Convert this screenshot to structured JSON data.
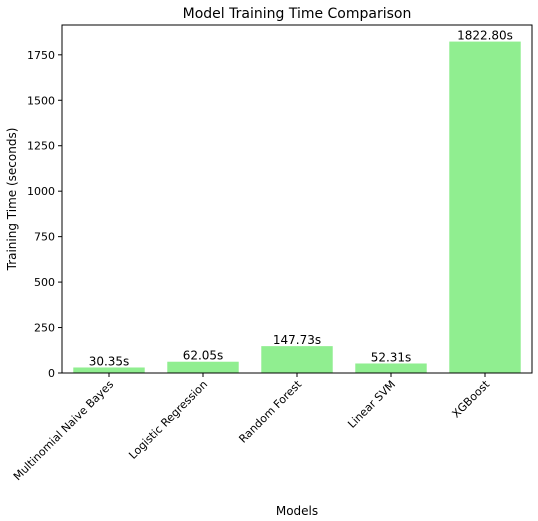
{
  "chart_data": {
    "type": "bar",
    "title": "Model Training Time Comparison",
    "xlabel": "Models",
    "ylabel": "Training Time (seconds)",
    "categories": [
      "Multinomial Naive Bayes",
      "Logistic Regression",
      "Random Forest",
      "Linear SVM",
      "XGBoost"
    ],
    "values": [
      30.35,
      62.05,
      147.73,
      52.31,
      1822.8
    ],
    "data_labels": [
      "30.35s",
      "62.05s",
      "147.73s",
      "52.31s",
      "1822.80s"
    ],
    "yticks": [
      0,
      250,
      500,
      750,
      1000,
      1250,
      1500,
      1750
    ],
    "ylim": [
      0,
      1914
    ],
    "bar_color": "#90ee90",
    "grid": false
  }
}
